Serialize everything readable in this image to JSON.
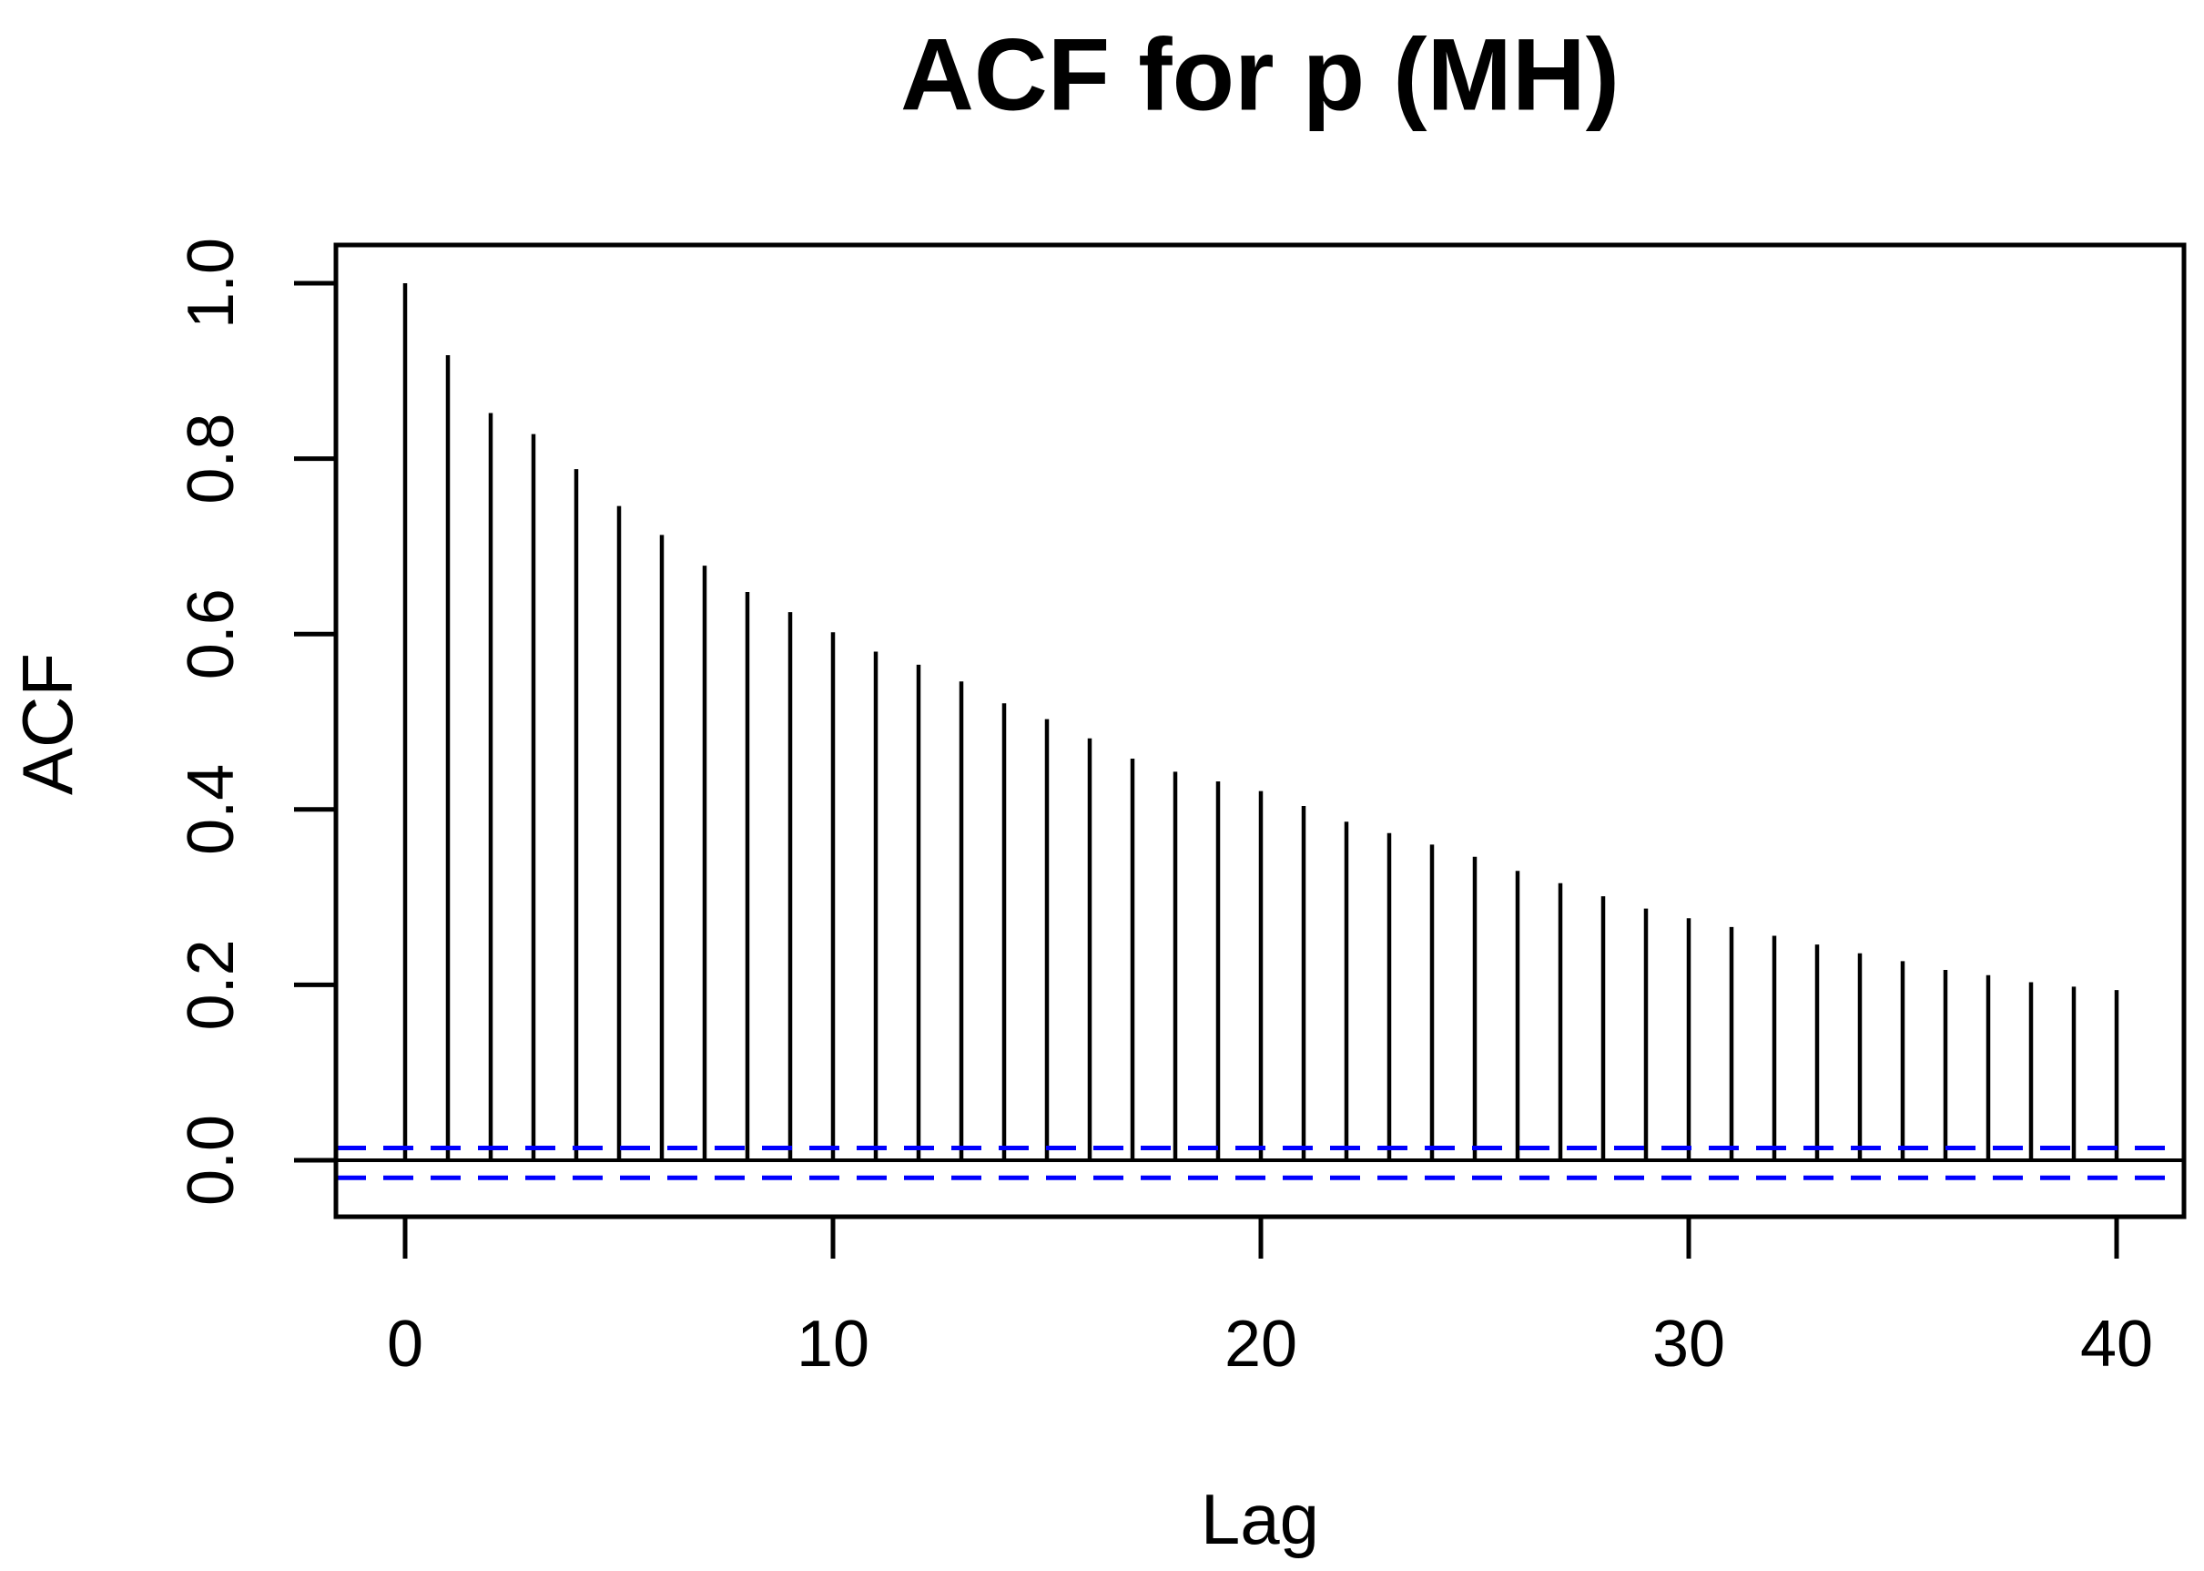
{
  "figure": {
    "title": "ACF for p (MH)",
    "xlabel": "Lag",
    "ylabel": "ACF"
  },
  "chart_data": {
    "type": "bar",
    "subtype": "stem-acf",
    "title": "ACF for p (MH)",
    "xlabel": "Lag",
    "ylabel": "ACF",
    "x": [
      0,
      1,
      2,
      3,
      4,
      5,
      6,
      7,
      8,
      9,
      10,
      11,
      12,
      13,
      14,
      15,
      16,
      17,
      18,
      19,
      20,
      21,
      22,
      23,
      24,
      25,
      26,
      27,
      28,
      29,
      30,
      31,
      32,
      33,
      34,
      35,
      36,
      37,
      38,
      39,
      40
    ],
    "values": [
      1.0,
      0.918,
      0.852,
      0.828,
      0.788,
      0.746,
      0.713,
      0.678,
      0.648,
      0.625,
      0.602,
      0.58,
      0.565,
      0.546,
      0.521,
      0.503,
      0.481,
      0.458,
      0.443,
      0.432,
      0.421,
      0.404,
      0.386,
      0.373,
      0.36,
      0.346,
      0.33,
      0.316,
      0.301,
      0.287,
      0.276,
      0.266,
      0.256,
      0.246,
      0.236,
      0.227,
      0.217,
      0.211,
      0.203,
      0.198,
      0.194
    ],
    "x_ticks": [
      "0",
      "10",
      "20",
      "30",
      "40"
    ],
    "x_tick_values": [
      0,
      10,
      20,
      30,
      40
    ],
    "y_ticks": [
      "0.0",
      "0.2",
      "0.4",
      "0.6",
      "0.8",
      "1.0"
    ],
    "y_tick_values": [
      0.0,
      0.2,
      0.4,
      0.6,
      0.8,
      1.0
    ],
    "xlim": [
      -1.6,
      41.6
    ],
    "ylim": [
      -0.061,
      1.041
    ],
    "zero_line": 0,
    "confidence_bounds": {
      "upper": 0.014,
      "lower": -0.02,
      "style": "dashed"
    },
    "grid": false,
    "legend": null
  },
  "colors": {
    "spike": "#000000",
    "frame": "#000000",
    "text": "#000000",
    "confidence": "#0000FF",
    "background": "#FFFFFF"
  }
}
